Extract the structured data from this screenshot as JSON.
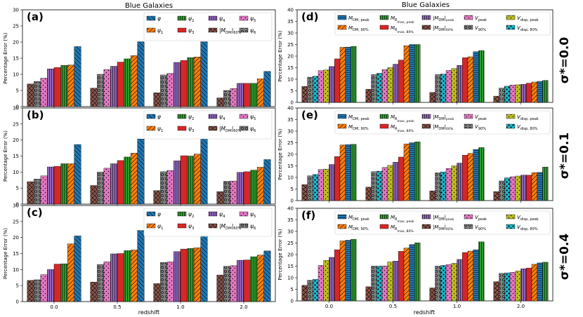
{
  "figure": {
    "left_title": "Blue Galaxies",
    "right_title": "Blue Galaxies",
    "xlabel": "redshift",
    "ylabel": "Percentage Error (%)",
    "row_labels": [
      "σ*=0.0",
      "σ*=0.1",
      "σ*=0.4"
    ]
  },
  "chart_data": [
    {
      "type": "bar",
      "panel": "(a)",
      "categories": [
        "0.0",
        "0.5",
        "1.0",
        "2.0"
      ],
      "ylim": [
        0,
        30
      ],
      "yticks": [
        0,
        5,
        10,
        15,
        20,
        25,
        30
      ],
      "series": [
        {
          "name": "|M_DM|_60%",
          "label_main": "|M",
          "label_sub": "DM",
          "label_after": "|",
          "label_tail": "60%",
          "values": [
            7.0,
            5.7,
            4.3,
            2.7
          ]
        },
        {
          "name": "ψ6",
          "label_main": "ψ",
          "label_sub": "6",
          "values": [
            7.8,
            10.0,
            9.8,
            5.0
          ]
        },
        {
          "name": "ψ5",
          "label_main": "ψ",
          "label_sub": "5",
          "values": [
            8.8,
            11.5,
            10.3,
            5.6
          ]
        },
        {
          "name": "ψ4",
          "label_main": "ψ",
          "label_sub": "4",
          "values": [
            11.7,
            12.5,
            13.7,
            7.2
          ]
        },
        {
          "name": "ψ3",
          "label_main": "ψ",
          "label_sub": "3",
          "values": [
            12.1,
            13.8,
            14.3,
            7.2
          ]
        },
        {
          "name": "ψ2",
          "label_main": "ψ",
          "label_sub": "2",
          "values": [
            12.8,
            14.8,
            15.2,
            7.2
          ]
        },
        {
          "name": "ψ1",
          "label_main": "ψ",
          "label_sub": "1",
          "values": [
            12.9,
            15.8,
            15.4,
            8.6
          ]
        },
        {
          "name": "φ",
          "label_main": "φ",
          "label_sub": "",
          "values": [
            18.6,
            20.1,
            20.1,
            10.9
          ]
        }
      ]
    },
    {
      "type": "bar",
      "panel": "(b)",
      "categories": [
        "0.0",
        "0.5",
        "1.0",
        "2.0"
      ],
      "ylim": [
        0,
        30
      ],
      "yticks": [
        0,
        5,
        10,
        15,
        20,
        25,
        30
      ],
      "series": [
        {
          "name": "|M_DM|_60%",
          "values": [
            7.0,
            5.8,
            4.2,
            3.9
          ]
        },
        {
          "name": "ψ6",
          "values": [
            7.8,
            10.0,
            10.1,
            7.1
          ]
        },
        {
          "name": "ψ5",
          "values": [
            8.8,
            11.2,
            10.5,
            7.2
          ]
        },
        {
          "name": "ψ4",
          "values": [
            11.6,
            12.6,
            13.5,
            9.9
          ]
        },
        {
          "name": "ψ3",
          "values": [
            11.8,
            13.6,
            15.1,
            10.1
          ]
        },
        {
          "name": "ψ2",
          "values": [
            12.6,
            14.7,
            15.0,
            10.6
          ]
        },
        {
          "name": "ψ1",
          "values": [
            12.6,
            15.9,
            15.6,
            11.5
          ]
        },
        {
          "name": "φ",
          "values": [
            18.6,
            20.3,
            20.3,
            13.9
          ]
        }
      ]
    },
    {
      "type": "bar",
      "panel": "(c)",
      "categories": [
        "0.0",
        "0.5",
        "1.0",
        "2.0"
      ],
      "ylim": [
        0,
        30
      ],
      "yticks": [
        0,
        5,
        10,
        15,
        20,
        25,
        30
      ],
      "series": [
        {
          "name": "|M_DM|_60%",
          "values": [
            6.6,
            6.1,
            5.6,
            8.3
          ]
        },
        {
          "name": "ψ6",
          "values": [
            6.8,
            11.6,
            12.2,
            11.0
          ]
        },
        {
          "name": "ψ5",
          "values": [
            8.4,
            12.4,
            12.4,
            11.2
          ]
        },
        {
          "name": "ψ4",
          "values": [
            10.0,
            14.9,
            15.6,
            12.9
          ]
        },
        {
          "name": "ψ3",
          "values": [
            11.7,
            15.0,
            16.4,
            13.0
          ]
        },
        {
          "name": "ψ2",
          "values": [
            11.8,
            15.9,
            16.6,
            14.0
          ]
        },
        {
          "name": "ψ1",
          "values": [
            18.0,
            16.1,
            16.8,
            14.5
          ]
        },
        {
          "name": "φ",
          "values": [
            20.5,
            22.2,
            20.7,
            15.8
          ]
        }
      ]
    },
    {
      "type": "bar",
      "panel": "(d)",
      "categories": [
        "0.0",
        "0.5",
        "1.0",
        "2.0"
      ],
      "ylim": [
        0,
        40
      ],
      "yticks": [
        0,
        5,
        10,
        15,
        20,
        25,
        30,
        35,
        40
      ],
      "series": [
        {
          "name": "|M_DM|_60%",
          "label_main": "|M",
          "label_sub": "DM",
          "label_after": "|",
          "label_tail": "60%",
          "values": [
            6.9,
            5.7,
            4.3,
            2.7
          ]
        },
        {
          "name": "V_90%",
          "label_main": "V",
          "label_sub": "90%",
          "values": [
            10.9,
            12.0,
            12.0,
            6.2
          ]
        },
        {
          "name": "V_disp,80%",
          "label_main": "V",
          "label_sub": "disp, 80%",
          "values": [
            11.3,
            12.6,
            12.2,
            7.0
          ]
        },
        {
          "name": "V_peak",
          "label_main": "V",
          "label_sub": "peak",
          "values": [
            13.7,
            14.2,
            13.8,
            7.5
          ]
        },
        {
          "name": "V_disp,peak",
          "label_main": "V",
          "label_sub": "disp, peak",
          "values": [
            14.0,
            15.0,
            14.6,
            7.6
          ]
        },
        {
          "name": "|M_DM|_peak",
          "label_main": "|M",
          "label_sub": "DM",
          "label_after": "|",
          "label_tail": "peak",
          "values": [
            15.5,
            16.5,
            16.0,
            7.8
          ]
        },
        {
          "name": "M_R_max,80%",
          "label_main": "M",
          "label_sub": "R",
          "label_tail": "max, 80%",
          "values": [
            18.8,
            18.3,
            19.3,
            8.3
          ]
        },
        {
          "name": "M_DM,90%",
          "label_main": "M",
          "label_sub": "DM, 90%",
          "values": [
            23.8,
            24.5,
            19.7,
            8.8
          ]
        },
        {
          "name": "M_DM,peak",
          "label_main": "M",
          "label_sub": "DM, peak",
          "values": [
            23.9,
            25.0,
            21.9,
            9.1
          ]
        },
        {
          "name": "M_R_max,peak",
          "label_main": "M",
          "label_sub": "R",
          "label_tail": "max, peak",
          "values": [
            24.2,
            25.0,
            22.4,
            9.5
          ]
        }
      ]
    },
    {
      "type": "bar",
      "panel": "(e)",
      "categories": [
        "0.0",
        "0.5",
        "1.0",
        "2.0"
      ],
      "ylim": [
        0,
        40
      ],
      "yticks": [
        0,
        5,
        10,
        15,
        20,
        25,
        30,
        35,
        40
      ],
      "series": [
        {
          "name": "|M_DM|_60%",
          "values": [
            6.9,
            5.8,
            4.2,
            3.9
          ]
        },
        {
          "name": "V_90%",
          "values": [
            10.7,
            12.5,
            12.0,
            8.5
          ]
        },
        {
          "name": "V_disp,80%",
          "values": [
            11.3,
            12.7,
            12.4,
            9.8
          ]
        },
        {
          "name": "V_peak",
          "values": [
            13.4,
            14.3,
            13.9,
            10.3
          ]
        },
        {
          "name": "V_disp,peak",
          "values": [
            13.6,
            15.2,
            15.0,
            10.6
          ]
        },
        {
          "name": "|M_DM|_peak",
          "values": [
            15.6,
            16.6,
            16.2,
            11.0
          ]
        },
        {
          "name": "M_R_max,80%",
          "values": [
            19.0,
            18.8,
            19.6,
            11.0
          ]
        },
        {
          "name": "M_DM,90%",
          "values": [
            24.0,
            24.5,
            20.4,
            12.1
          ]
        },
        {
          "name": "M_DM,peak",
          "values": [
            24.2,
            25.0,
            22.1,
            12.2
          ]
        },
        {
          "name": "M_R_max,peak",
          "values": [
            24.3,
            25.4,
            22.9,
            14.5
          ]
        }
      ]
    },
    {
      "type": "bar",
      "panel": "(f)",
      "categories": [
        "0.0",
        "0.5",
        "1.0",
        "2.0"
      ],
      "ylim": [
        0,
        40
      ],
      "yticks": [
        0,
        5,
        10,
        15,
        20,
        25,
        30,
        35,
        40
      ],
      "series": [
        {
          "name": "|M_DM|_60%",
          "values": [
            6.7,
            6.1,
            5.6,
            8.3
          ]
        },
        {
          "name": "V_90%",
          "values": [
            8.9,
            15.0,
            15.0,
            11.9
          ]
        },
        {
          "name": "V_disp,80%",
          "values": [
            9.3,
            15.0,
            15.3,
            12.1
          ]
        },
        {
          "name": "V_peak",
          "values": [
            15.3,
            15.1,
            15.7,
            12.3
          ]
        },
        {
          "name": "V_disp,peak",
          "values": [
            17.5,
            16.8,
            16.2,
            12.9
          ]
        },
        {
          "name": "|M_DM|_peak",
          "values": [
            18.8,
            17.2,
            17.9,
            13.9
          ]
        },
        {
          "name": "M_R_max,80%",
          "values": [
            22.1,
            21.4,
            20.9,
            14.2
          ]
        },
        {
          "name": "M_DM,90%",
          "values": [
            25.9,
            22.8,
            21.5,
            15.8
          ]
        },
        {
          "name": "M_DM,peak",
          "values": [
            26.2,
            24.3,
            22.1,
            16.4
          ]
        },
        {
          "name": "M_R_max,peak",
          "values": [
            26.6,
            25.1,
            25.5,
            16.7
          ]
        }
      ]
    }
  ],
  "styles": {
    "left": {
      "|M_DM|_60%": {
        "color": "#8c564b",
        "hatch": "cross"
      },
      "ψ6": {
        "color": "#7f7f7f",
        "hatch": "circles"
      },
      "ψ5": {
        "color": "#e377c2",
        "hatch": "dots"
      },
      "ψ4": {
        "color": "#9467bd",
        "hatch": "vlines"
      },
      "ψ3": {
        "color": "#d62728",
        "hatch": "none"
      },
      "ψ2": {
        "color": "#2ca02c",
        "hatch": "vlines"
      },
      "ψ1": {
        "color": "#ff7f0e",
        "hatch": "diag"
      },
      "φ": {
        "color": "#1f77b4",
        "hatch": "backdiag"
      }
    },
    "right": {
      "|M_DM|_60%": {
        "color": "#8c564b",
        "hatch": "cross"
      },
      "V_90%": {
        "color": "#7f7f7f",
        "hatch": "circles"
      },
      "V_disp,80%": {
        "color": "#17becf",
        "hatch": "bigdots"
      },
      "V_peak": {
        "color": "#e377c2",
        "hatch": "dots"
      },
      "V_disp,peak": {
        "color": "#bcbd22",
        "hatch": "dots"
      },
      "|M_DM|_peak": {
        "color": "#9467bd",
        "hatch": "vlines"
      },
      "M_R_max,80%": {
        "color": "#d62728",
        "hatch": "none"
      },
      "M_DM,90%": {
        "color": "#ff7f0e",
        "hatch": "diag"
      },
      "M_DM,peak": {
        "color": "#1f77b4",
        "hatch": "hlines"
      },
      "M_R_max,peak": {
        "color": "#2ca02c",
        "hatch": "vlines"
      }
    },
    "legend_order_left": [
      "φ",
      "ψ2",
      "ψ4",
      "ψ5",
      "ψ1",
      "ψ3",
      "|M_DM|_60%",
      "ψ6"
    ],
    "legend_order_right": [
      "M_DM,peak",
      "M_R_max,peak",
      "|M_DM|_peak",
      "V_peak",
      "V_disp,peak",
      "M_DM,90%",
      "M_R_max,80%",
      "|M_DM|_60%",
      "V_90%",
      "V_disp,80%"
    ]
  }
}
